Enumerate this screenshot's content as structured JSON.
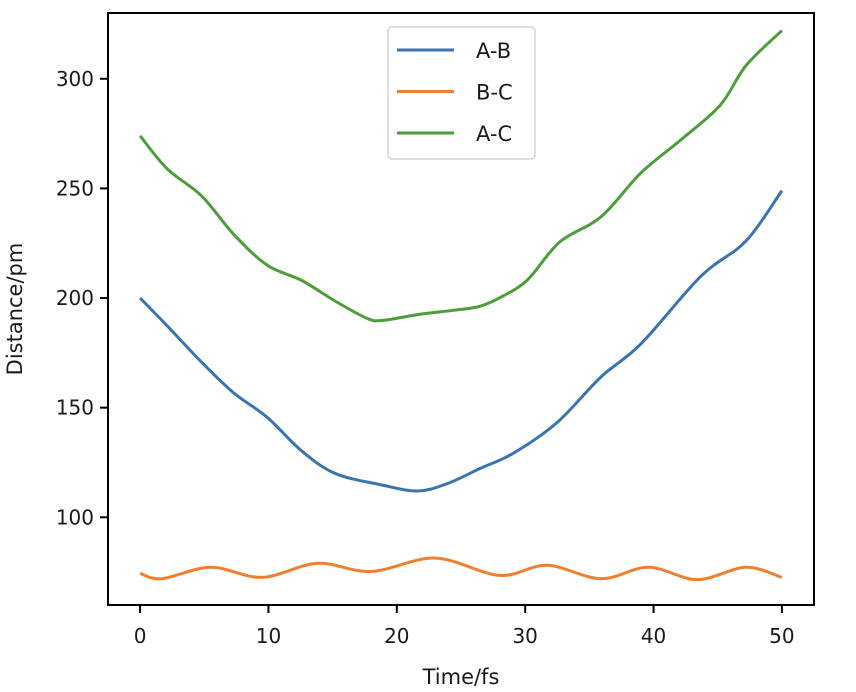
{
  "chart_data": {
    "type": "line",
    "title": "",
    "xlabel": "Time/fs",
    "ylabel": "Distance/pm",
    "xlim": [
      -2.5,
      52.5
    ],
    "ylim": [
      60,
      330
    ],
    "xticks": [
      0,
      10,
      20,
      30,
      40,
      50
    ],
    "yticks": [
      100,
      150,
      200,
      250,
      300
    ],
    "grid": false,
    "legend": {
      "placement": "upper-center",
      "entries": [
        "A-B",
        "B-C",
        "A-C"
      ]
    },
    "series": [
      {
        "name": "A-B",
        "color": "#3a75b0",
        "x": [
          0,
          2.1,
          4.8,
          7.3,
          9.9,
          12.6,
          15.2,
          18.7,
          21.6,
          23.9,
          26.5,
          29.1,
          32.5,
          35.9,
          39.0,
          43.7,
          47.2,
          50
        ],
        "y": [
          200,
          187.4,
          170.7,
          156.7,
          145.6,
          130.2,
          120,
          114.9,
          112,
          115.3,
          122.3,
          129.3,
          143.3,
          164,
          179,
          210,
          226,
          249
        ]
      },
      {
        "name": "B-C",
        "color": "#f08030",
        "x": [
          0,
          1.7,
          5.5,
          9.5,
          13.8,
          18.0,
          23.0,
          28.0,
          31.7,
          35.9,
          39.6,
          43.4,
          47.2,
          50
        ],
        "y": [
          74.4,
          72,
          77.2,
          72.6,
          79,
          75.3,
          81.4,
          73.5,
          78.1,
          72,
          77.2,
          71.6,
          77.2,
          72.6
        ]
      },
      {
        "name": "A-C",
        "color": "#4b9e3a",
        "x": [
          0,
          2.1,
          4.8,
          7.3,
          9.9,
          12.6,
          15.2,
          17.7,
          18.9,
          21.8,
          24.4,
          26.5,
          28.3,
          30.2,
          32.7,
          35.9,
          39.0,
          42.1,
          45.2,
          47.2,
          50
        ],
        "y": [
          274,
          259,
          246.5,
          229,
          215,
          208,
          198.6,
          190.7,
          189.8,
          192.6,
          194.4,
          196.3,
          201,
          208.4,
          225.6,
          237,
          257,
          272,
          288,
          306,
          322
        ]
      }
    ]
  }
}
